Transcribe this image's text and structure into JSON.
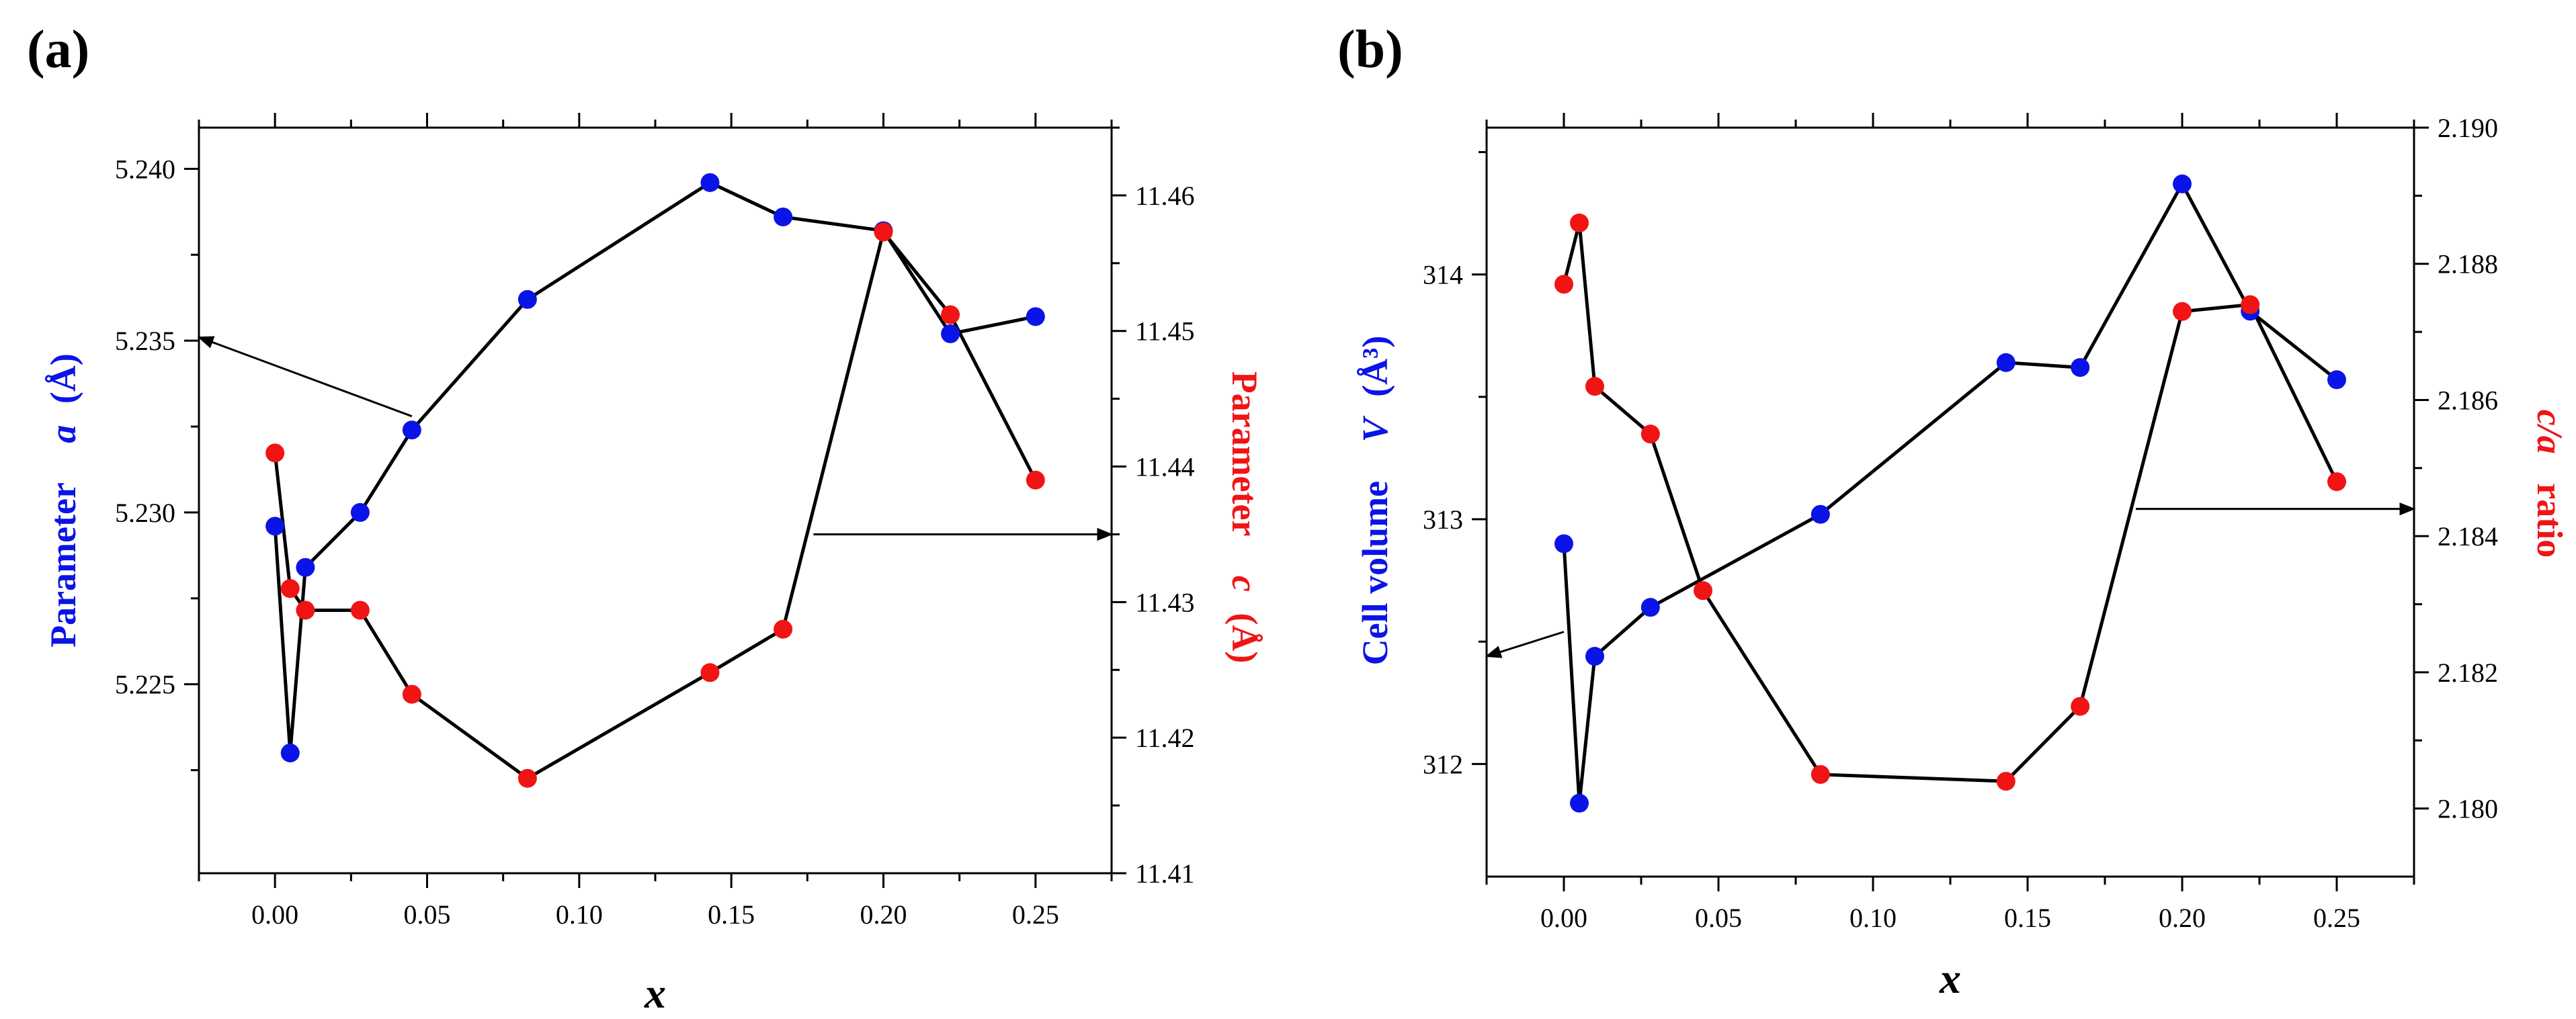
{
  "panels": {
    "a": {
      "label": "(a)"
    },
    "b": {
      "label": "(b)"
    }
  },
  "colors": {
    "blue": "#0a14e6",
    "red": "#f01414",
    "axis": "#000000"
  },
  "chart_data": [
    {
      "type": "line",
      "panel": "(a)",
      "xlabel": "x",
      "ylabel_left": {
        "prefix": "Parameter",
        "symbol": "a",
        "unit": "(Å)"
      },
      "ylabel_right": {
        "prefix": "Parameter",
        "symbol": "c",
        "unit": "(Å)"
      },
      "xlim": [
        -0.025,
        0.275
      ],
      "xticks": [
        0.0,
        0.05,
        0.1,
        0.15,
        0.2,
        0.25
      ],
      "xtick_labels": [
        "0.00",
        "0.05",
        "0.10",
        "0.15",
        "0.20",
        "0.25"
      ],
      "ylim_left": [
        5.2195,
        5.2412
      ],
      "yticks_left": [
        5.225,
        5.23,
        5.235,
        5.24
      ],
      "ytick_labels_left": [
        "5.225",
        "5.230",
        "5.235",
        "5.240"
      ],
      "ylim_right": [
        11.41,
        11.465
      ],
      "yticks_right": [
        11.41,
        11.42,
        11.43,
        11.44,
        11.45,
        11.46
      ],
      "ytick_labels_right": [
        "11.41",
        "11.42",
        "11.43",
        "11.44",
        "11.45",
        "11.46"
      ],
      "series": [
        {
          "name": "a",
          "axis": "left",
          "color": "#0a14e6",
          "x": [
            0.0,
            0.005,
            0.01,
            0.028,
            0.045,
            0.083,
            0.143,
            0.167,
            0.2,
            0.222,
            0.25
          ],
          "y": [
            5.2296,
            5.223,
            5.2284,
            5.23,
            5.2324,
            5.2362,
            5.2396,
            5.2386,
            5.2382,
            5.2352,
            5.2357
          ]
        },
        {
          "name": "c",
          "axis": "right",
          "color": "#f01414",
          "x": [
            0.0,
            0.005,
            0.01,
            0.028,
            0.045,
            0.083,
            0.143,
            0.167,
            0.2,
            0.222,
            0.25
          ],
          "y": [
            11.441,
            11.431,
            11.4294,
            11.4294,
            11.4232,
            11.417,
            11.4248,
            11.428,
            11.4573,
            11.4512,
            11.439
          ]
        }
      ],
      "arrows": [
        {
          "points_to": "left",
          "from": [
            0.045,
            5.2328
          ],
          "to": [
            -0.025,
            5.2351
          ]
        },
        {
          "points_to": "right",
          "from": [
            0.177,
            11.435
          ],
          "to": [
            0.275,
            11.435
          ]
        }
      ]
    },
    {
      "type": "line",
      "panel": "(b)",
      "xlabel": "x",
      "ylabel_left": {
        "prefix": "Cell volume",
        "symbol": "V",
        "unit": "(Å³)"
      },
      "ylabel_right": {
        "symbol": "c/a",
        "suffix": "ratio"
      },
      "xlim": [
        -0.025,
        0.275
      ],
      "xticks": [
        0.0,
        0.05,
        0.1,
        0.15,
        0.2,
        0.25
      ],
      "xtick_labels": [
        "0.00",
        "0.05",
        "0.10",
        "0.15",
        "0.20",
        "0.25"
      ],
      "ylim_left": [
        311.54,
        314.6
      ],
      "yticks_left": [
        312,
        313,
        314
      ],
      "ytick_labels_left": [
        "312",
        "313",
        "314"
      ],
      "ylim_right": [
        2.179,
        2.19
      ],
      "yticks_right": [
        2.18,
        2.182,
        2.184,
        2.186,
        2.188,
        2.19
      ],
      "ytick_labels_right": [
        "2.180",
        "2.182",
        "2.184",
        "2.186",
        "2.188",
        "2.190"
      ],
      "series": [
        {
          "name": "V",
          "axis": "left",
          "color": "#0a14e6",
          "x": [
            0.0,
            0.005,
            0.01,
            0.028,
            0.083,
            0.143,
            0.167,
            0.2,
            0.222,
            0.25
          ],
          "y": [
            312.9,
            311.84,
            312.44,
            312.64,
            313.02,
            313.64,
            313.62,
            314.37,
            313.85,
            313.57
          ]
        },
        {
          "name": "c/a",
          "axis": "right",
          "color": "#f01414",
          "x": [
            0.0,
            0.005,
            0.01,
            0.028,
            0.045,
            0.083,
            0.143,
            0.167,
            0.2,
            0.222,
            0.25
          ],
          "y": [
            2.1877,
            2.1886,
            2.1862,
            2.1855,
            2.1832,
            2.1805,
            2.1804,
            2.1815,
            2.1873,
            2.1874,
            2.1848
          ]
        }
      ],
      "arrows": [
        {
          "points_to": "left",
          "from": [
            0.0,
            312.54
          ],
          "to": [
            -0.025,
            312.44
          ]
        },
        {
          "points_to": "right",
          "from": [
            0.185,
            2.1844
          ],
          "to": [
            0.275,
            2.1844
          ]
        }
      ]
    }
  ]
}
